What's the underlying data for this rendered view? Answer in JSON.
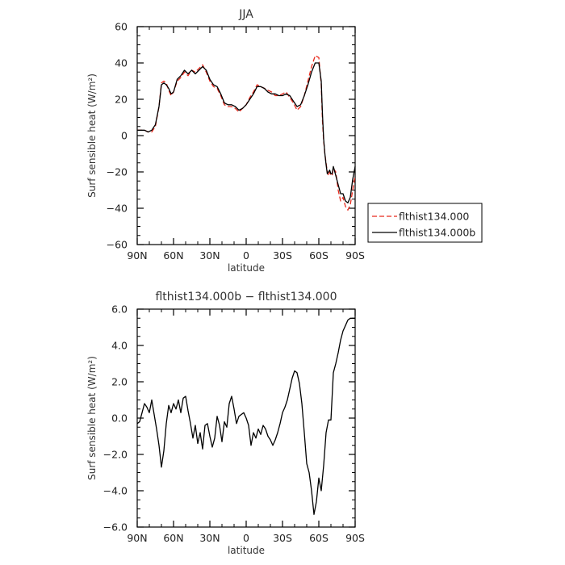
{
  "chart_data": [
    {
      "type": "line",
      "title": "JJA",
      "xlabel": "latitude",
      "ylabel": "Surf sensible heat (W/m²)",
      "xlim": [
        90,
        -90
      ],
      "ylim": [
        -60,
        60
      ],
      "xticks": [
        90,
        60,
        30,
        0,
        -30,
        -60,
        -90
      ],
      "xtick_labels": [
        "90N",
        "60N",
        "30N",
        "0",
        "30S",
        "60S",
        "90S"
      ],
      "yticks": [
        60,
        40,
        20,
        0,
        -20,
        -40,
        -60
      ],
      "ytick_labels": [
        "60",
        "40",
        "20",
        "0",
        "−20",
        "−40",
        "−60"
      ],
      "legend": {
        "placement": "right-outside",
        "entries": [
          "flthist134.000",
          "flthist134.000b"
        ]
      },
      "grid": false,
      "series": [
        {
          "name": "flthist134.000",
          "color": "#e8291c",
          "dash": "dashed",
          "x": [
            90,
            87,
            84,
            81,
            78,
            75,
            72,
            70,
            68,
            66,
            64,
            62,
            60,
            57,
            54,
            51,
            48,
            45,
            42,
            39,
            36,
            33,
            30,
            27,
            24,
            21,
            18,
            15,
            12,
            9,
            6,
            3,
            0,
            -3,
            -6,
            -9,
            -12,
            -15,
            -18,
            -21,
            -24,
            -27,
            -30,
            -33,
            -36,
            -39,
            -42,
            -45,
            -48,
            -51,
            -54,
            -57,
            -60,
            -62,
            -63,
            -64,
            -65,
            -66,
            -67,
            -68,
            -69,
            -70,
            -71,
            -72,
            -74,
            -76,
            -78,
            -80,
            -82,
            -84,
            -86,
            -88,
            -90
          ],
          "y": [
            3,
            3,
            3,
            2,
            2,
            5,
            16,
            29,
            30,
            29,
            25,
            22,
            24,
            30,
            32,
            35,
            33,
            36,
            35,
            37,
            39,
            35,
            30,
            27,
            26,
            22,
            17,
            16,
            16,
            15,
            13,
            15,
            17,
            21,
            24,
            28,
            27,
            26,
            25,
            24,
            22,
            22,
            23,
            24,
            21,
            18,
            14,
            16,
            22,
            30,
            38,
            44,
            43,
            28,
            8,
            -3,
            -10,
            -15,
            -20,
            -22,
            -20,
            -22,
            -22,
            -18,
            -20,
            -30,
            -36,
            -34,
            -39,
            -41,
            -38,
            -30,
            -22
          ]
        },
        {
          "name": "flthist134.000b",
          "color": "#000000",
          "dash": "solid",
          "x": [
            90,
            87,
            84,
            81,
            78,
            75,
            72,
            70,
            68,
            66,
            64,
            62,
            60,
            57,
            54,
            51,
            48,
            45,
            42,
            39,
            36,
            33,
            30,
            27,
            24,
            21,
            18,
            15,
            12,
            9,
            6,
            3,
            0,
            -3,
            -6,
            -9,
            -12,
            -15,
            -18,
            -21,
            -24,
            -27,
            -30,
            -33,
            -36,
            -39,
            -42,
            -45,
            -48,
            -51,
            -54,
            -57,
            -60,
            -62,
            -63,
            -64,
            -65,
            -66,
            -67,
            -68,
            -69,
            -70,
            -71,
            -72,
            -74,
            -76,
            -78,
            -80,
            -82,
            -84,
            -86,
            -88,
            -90
          ],
          "y": [
            3,
            3,
            3,
            2,
            3,
            6,
            16,
            28,
            29,
            28,
            26,
            23,
            24,
            31,
            33,
            36,
            34,
            36,
            34,
            36,
            38,
            36,
            31,
            28,
            27,
            23,
            18,
            17,
            17,
            16,
            14,
            15,
            17,
            20,
            23,
            27,
            27,
            26,
            24,
            23,
            23,
            22,
            22,
            23,
            22,
            19,
            16,
            17,
            22,
            28,
            35,
            40,
            40,
            30,
            12,
            -2,
            -10,
            -16,
            -21,
            -20,
            -19,
            -21,
            -21,
            -17,
            -22,
            -27,
            -32,
            -32,
            -36,
            -37,
            -34,
            -24,
            -17
          ]
        }
      ]
    },
    {
      "type": "line",
      "title": "flthist134.000b − flthist134.000",
      "xlabel": "latitude",
      "ylabel": "Surf sensible heat (W/m²)",
      "xlim": [
        90,
        -90
      ],
      "ylim": [
        -6,
        6
      ],
      "xticks": [
        90,
        60,
        30,
        0,
        -30,
        -60,
        -90
      ],
      "xtick_labels": [
        "90N",
        "60N",
        "30N",
        "0",
        "30S",
        "60S",
        "90S"
      ],
      "yticks": [
        6,
        4,
        2,
        0,
        -2,
        -4,
        -6
      ],
      "ytick_labels": [
        "6.0",
        "4.0",
        "2.0",
        "0.0",
        "−2.0",
        "−4.0",
        "−6.0"
      ],
      "grid": false,
      "series": [
        {
          "color": "#000000",
          "dash": "solid",
          "x": [
            90,
            88,
            86,
            84,
            82,
            80,
            78,
            76,
            74,
            72,
            70,
            68,
            66,
            64,
            62,
            60,
            58,
            56,
            54,
            52,
            50,
            48,
            46,
            44,
            42,
            40,
            38,
            36,
            34,
            32,
            30,
            28,
            26,
            24,
            22,
            20,
            18,
            16,
            14,
            12,
            10,
            8,
            6,
            4,
            2,
            0,
            -2,
            -4,
            -6,
            -8,
            -10,
            -12,
            -14,
            -16,
            -18,
            -20,
            -22,
            -24,
            -26,
            -28,
            -30,
            -32,
            -34,
            -36,
            -38,
            -40,
            -42,
            -44,
            -46,
            -48,
            -50,
            -52,
            -54,
            -56,
            -58,
            -60,
            -62,
            -64,
            -66,
            -68,
            -70,
            -72,
            -74,
            -76,
            -78,
            -80,
            -82,
            -84,
            -86,
            -88,
            -90
          ],
          "y": [
            -0.3,
            -0.2,
            0.3,
            0.8,
            0.6,
            0.3,
            1.0,
            0.2,
            -0.6,
            -1.5,
            -2.7,
            -1.8,
            -0.3,
            0.7,
            0.3,
            0.8,
            0.5,
            1.0,
            0.3,
            1.1,
            1.2,
            0.4,
            -0.3,
            -1.1,
            -0.4,
            -1.4,
            -0.8,
            -1.7,
            -0.4,
            -0.3,
            -1.0,
            -1.6,
            -1.1,
            0.1,
            -0.4,
            -1.3,
            -0.2,
            -0.5,
            0.8,
            1.2,
            0.5,
            -0.3,
            0.1,
            0.2,
            0.3,
            0.0,
            -0.4,
            -1.5,
            -0.8,
            -1.1,
            -0.6,
            -0.9,
            -0.4,
            -0.6,
            -1.0,
            -1.2,
            -1.5,
            -1.2,
            -0.8,
            -0.3,
            0.3,
            0.6,
            1.0,
            1.6,
            2.2,
            2.6,
            2.5,
            1.9,
            0.8,
            -0.8,
            -2.5,
            -3.0,
            -4.0,
            -5.3,
            -4.6,
            -3.3,
            -4.0,
            -2.6,
            -0.8,
            -0.1,
            -0.1,
            2.5,
            3.0,
            3.6,
            4.3,
            4.8,
            5.1,
            5.4,
            5.5,
            5.5,
            5.5
          ]
        }
      ]
    }
  ]
}
